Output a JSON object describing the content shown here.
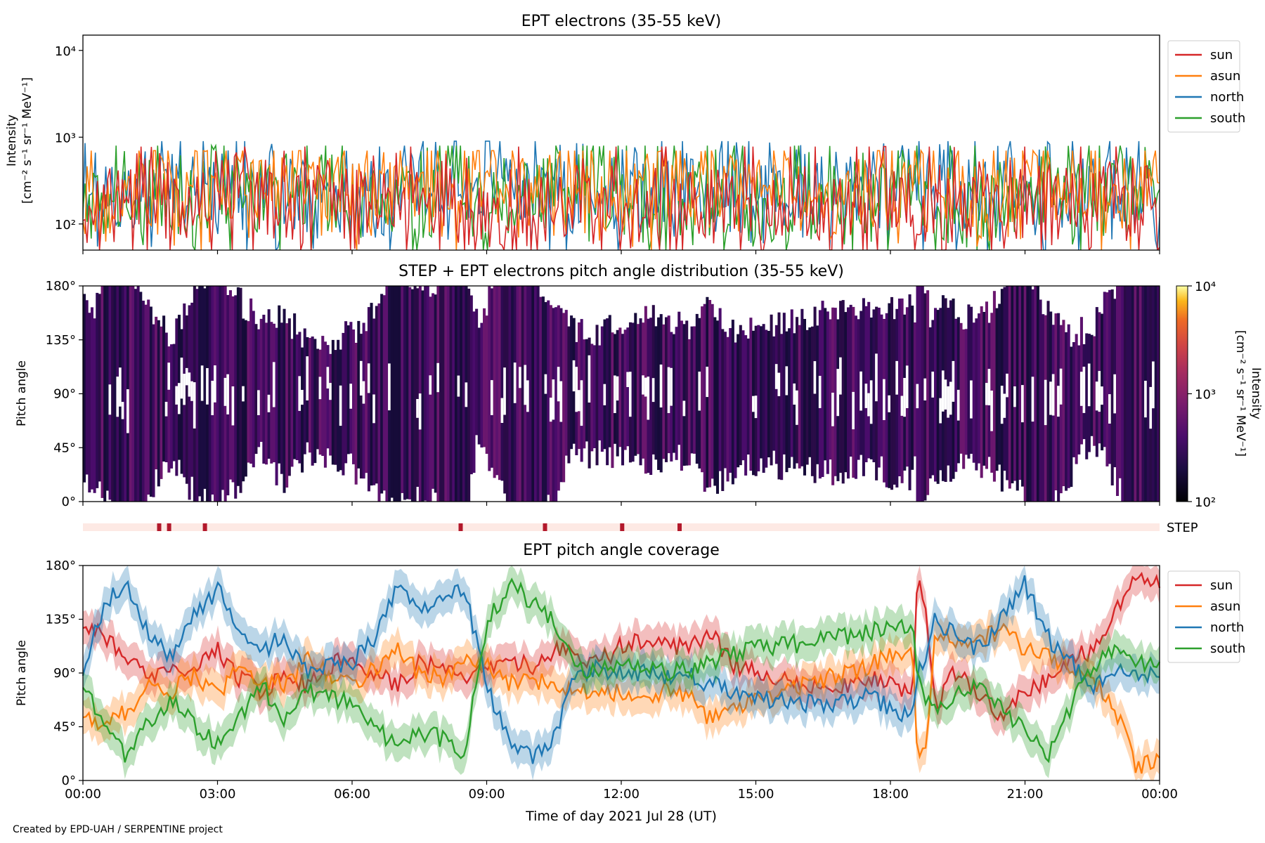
{
  "footer": "Created by EPD-UAH / SERPENTINE project",
  "x_axis": {
    "label": "Time of day 2021 Jul 28 (UT)",
    "ticks": [
      "00:00",
      "03:00",
      "06:00",
      "09:00",
      "12:00",
      "15:00",
      "18:00",
      "21:00",
      "00:00"
    ],
    "range_hours": [
      0,
      24
    ]
  },
  "chart_data": [
    {
      "type": "line",
      "title": "EPT electrons (35-55 keV)",
      "ylabel_line1": "Intensity",
      "ylabel_line2": "[cm⁻² s⁻¹ sr⁻¹ MeV⁻¹]",
      "yscale": "log",
      "ylim": [
        50,
        15000
      ],
      "yticks": [
        100,
        1000,
        10000
      ],
      "ytick_labels": [
        "10²",
        "10³",
        "10⁴"
      ],
      "legend": "upper-right-outside",
      "series": [
        {
          "name": "sun",
          "color": "#d62728",
          "typical": 180,
          "min_seen": 50,
          "max_seen": 780
        },
        {
          "name": "asun",
          "color": "#ff7f0e",
          "typical": 260,
          "min_seen": 50,
          "max_seen": 700
        },
        {
          "name": "north",
          "color": "#1f77b4",
          "typical": 220,
          "min_seen": 50,
          "max_seen": 900
        },
        {
          "name": "south",
          "color": "#2ca02c",
          "typical": 220,
          "min_seen": 50,
          "max_seen": 800
        }
      ]
    },
    {
      "type": "heatmap",
      "title": "STEP + EPT electrons pitch angle distribution (35-55 keV)",
      "ylabel": "Pitch angle",
      "ylim": [
        0,
        180
      ],
      "yticks": [
        0,
        45,
        90,
        135,
        180
      ],
      "ytick_labels": [
        "0°",
        "45°",
        "90°",
        "135°",
        "180°"
      ],
      "colorbar": {
        "label_line1": "Intensity",
        "label_line2": "[cm⁻² s⁻¹ sr⁻¹ MeV⁻¹]",
        "scale": "log",
        "range": [
          100,
          10000
        ],
        "tick_labels": [
          "10²",
          "10³",
          "10⁴"
        ],
        "colormap": "inferno"
      }
    },
    {
      "type": "marker-strip",
      "label": "STEP",
      "markers_hours": [
        1.7,
        1.92,
        2.72,
        8.42,
        10.3,
        12.02,
        13.3
      ]
    },
    {
      "type": "area",
      "title": "EPT pitch angle coverage",
      "ylabel": "Pitch angle",
      "ylim": [
        0,
        180
      ],
      "yticks": [
        0,
        45,
        90,
        135,
        180
      ],
      "ytick_labels": [
        "0°",
        "45°",
        "90°",
        "135°",
        "180°"
      ],
      "legend": "upper-right-outside",
      "series": [
        {
          "name": "sun",
          "color": "#d62728",
          "x": [
            0,
            0.5,
            1,
            1.5,
            2,
            2.5,
            3,
            3.5,
            4,
            4.5,
            5,
            5.5,
            6,
            6.5,
            7,
            7.5,
            8,
            8.5,
            9,
            9.5,
            10,
            10.5,
            11,
            11.5,
            12,
            12.5,
            13,
            13.5,
            14,
            14.5,
            15,
            15.5,
            16,
            16.5,
            17,
            17.5,
            18,
            18.5,
            18.6,
            18.8,
            19,
            19.5,
            20,
            20.5,
            21,
            21.5,
            22,
            22.5,
            23,
            23.5,
            24
          ],
          "y": [
            130,
            120,
            100,
            85,
            95,
            90,
            110,
            85,
            75,
            90,
            80,
            95,
            105,
            90,
            80,
            100,
            95,
            85,
            90,
            100,
            95,
            110,
            105,
            100,
            112,
            118,
            115,
            110,
            125,
            95,
            92,
            85,
            80,
            75,
            80,
            85,
            80,
            70,
            170,
            140,
            60,
            95,
            70,
            55,
            75,
            85,
            100,
            110,
            140,
            170,
            165
          ]
        },
        {
          "name": "asun",
          "color": "#ff7f0e",
          "x": [
            0,
            0.5,
            1,
            1.5,
            2,
            2.5,
            3,
            3.5,
            4,
            4.5,
            5,
            5.5,
            6,
            6.5,
            7,
            7.5,
            8,
            8.5,
            9,
            9.5,
            10,
            10.5,
            11,
            11.5,
            12,
            12.5,
            13,
            13.5,
            14,
            14.5,
            15,
            15.5,
            16,
            16.5,
            17,
            17.5,
            18,
            18.5,
            18.6,
            18.8,
            19,
            19.5,
            20,
            20.5,
            21,
            21.5,
            22,
            22.5,
            23,
            23.5,
            24
          ],
          "y": [
            55,
            45,
            60,
            80,
            75,
            90,
            70,
            95,
            85,
            80,
            100,
            90,
            80,
            95,
            110,
            90,
            85,
            100,
            95,
            80,
            85,
            80,
            75,
            78,
            72,
            70,
            75,
            72,
            50,
            60,
            70,
            72,
            80,
            85,
            90,
            95,
            105,
            110,
            10,
            30,
            120,
            115,
            120,
            125,
            110,
            105,
            95,
            85,
            60,
            10,
            20
          ]
        },
        {
          "name": "north",
          "color": "#1f77b4",
          "x": [
            0,
            0.5,
            1,
            1.5,
            2,
            2.5,
            3,
            3.5,
            4,
            4.5,
            5,
            5.5,
            6,
            6.5,
            7,
            7.5,
            8,
            8.5,
            9,
            9.5,
            10,
            10.5,
            11,
            11.5,
            12,
            12.5,
            13,
            13.5,
            14,
            14.5,
            15,
            15.5,
            16,
            16.5,
            17,
            17.5,
            18,
            18.5,
            18.6,
            18.8,
            19,
            19.5,
            20,
            20.5,
            21,
            21.5,
            22,
            22.5,
            23,
            23.5,
            24
          ],
          "y": [
            90,
            150,
            165,
            120,
            100,
            140,
            160,
            130,
            110,
            120,
            90,
            95,
            100,
            120,
            160,
            140,
            150,
            160,
            80,
            30,
            20,
            35,
            90,
            95,
            88,
            90,
            85,
            88,
            80,
            75,
            70,
            68,
            65,
            62,
            65,
            70,
            60,
            55,
            90,
            105,
            135,
            120,
            110,
            140,
            165,
            120,
            100,
            80,
            95,
            90,
            85
          ]
        },
        {
          "name": "south",
          "color": "#2ca02c",
          "x": [
            0,
            0.5,
            1,
            1.5,
            2,
            2.5,
            3,
            3.5,
            4,
            4.5,
            5,
            5.5,
            6,
            6.5,
            7,
            7.5,
            8,
            8.5,
            9,
            9.5,
            10,
            10.5,
            11,
            11.5,
            12,
            12.5,
            13,
            13.5,
            14,
            14.5,
            15,
            15.5,
            16,
            16.5,
            17,
            17.5,
            18,
            18.5,
            18.6,
            18.8,
            19,
            19.5,
            20,
            20.5,
            21,
            21.5,
            22,
            22.5,
            23,
            23.5,
            24
          ],
          "y": [
            80,
            40,
            20,
            50,
            70,
            45,
            30,
            55,
            80,
            50,
            75,
            70,
            65,
            45,
            30,
            40,
            35,
            25,
            130,
            165,
            150,
            135,
            95,
            92,
            98,
            95,
            90,
            92,
            100,
            105,
            110,
            112,
            115,
            118,
            120,
            125,
            125,
            130,
            85,
            70,
            55,
            70,
            85,
            60,
            40,
            20,
            60,
            95,
            110,
            100,
            95
          ]
        }
      ]
    }
  ]
}
